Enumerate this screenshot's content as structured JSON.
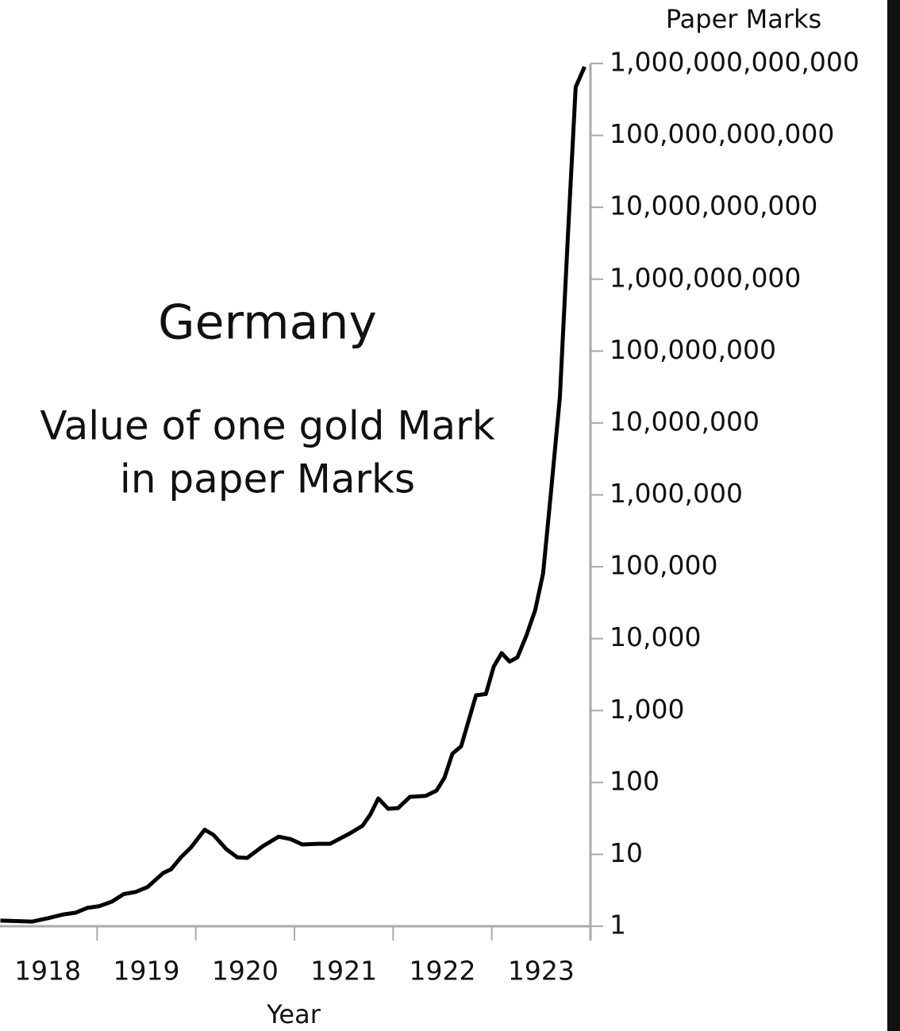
{
  "chart_data": {
    "type": "line",
    "title": "Germany",
    "subtitle": [
      "Value of one gold Mark",
      "in paper Marks"
    ],
    "y_label": "Paper Marks",
    "x_label": "Year",
    "x_categories": [
      "1918",
      "1919",
      "1920",
      "1921",
      "1922",
      "1923"
    ],
    "xlim": [
      1918,
      1924
    ],
    "xticks": [
      1918,
      1919,
      1920,
      1921,
      1922,
      1923,
      1924
    ],
    "log_y": true,
    "ylim": [
      1,
      1000000000000
    ],
    "yticks": [
      1,
      10,
      100,
      {
        "value": 1000,
        "label": "1,000"
      },
      {
        "value": 10000,
        "label": "10,000"
      },
      {
        "value": 100000,
        "label": "100,000"
      },
      {
        "value": 1000000,
        "label": "1,000,000"
      },
      {
        "value": 10000000,
        "label": "10,000,000"
      },
      {
        "value": 100000000,
        "label": "100,000,000"
      },
      {
        "value": 1000000000,
        "label": "1,000,000,000"
      },
      {
        "value": 10000000000,
        "label": "10,000,000,000"
      },
      {
        "value": 100000000000,
        "label": "100,000,000,000"
      },
      {
        "value": 1000000000000,
        "label": "1,000,000,000,000"
      }
    ],
    "color": "#000000",
    "x": [
      1918.02,
      1918.34,
      1918.5,
      1918.66,
      1918.78,
      1918.9,
      1919.02,
      1919.15,
      1919.27,
      1919.39,
      1919.51,
      1919.67,
      1919.75,
      1919.85,
      1919.95,
      1920.09,
      1920.18,
      1920.31,
      1920.42,
      1920.52,
      1920.68,
      1920.84,
      1920.96,
      1921.08,
      1921.24,
      1921.36,
      1921.56,
      1921.69,
      1921.77,
      1921.85,
      1921.95,
      1922.05,
      1922.17,
      1922.33,
      1922.44,
      1922.52,
      1922.6,
      1922.69,
      1922.84,
      1922.94,
      1923.02,
      1923.1,
      1923.18,
      1923.26,
      1923.35,
      1923.44,
      1923.52,
      1923.6,
      1923.69,
      1923.77,
      1923.85,
      1923.94
    ],
    "values": [
      1.2,
      1.16,
      1.29,
      1.46,
      1.54,
      1.8,
      1.9,
      2.2,
      2.8,
      3.0,
      3.5,
      5.5,
      6.2,
      9.1,
      12.4,
      22,
      18.6,
      11.8,
      9.1,
      8.9,
      13,
      17.6,
      16.3,
      13.7,
      14,
      14,
      19.5,
      25,
      36,
      60,
      43,
      44,
      63,
      65,
      77,
      116,
      250,
      320,
      1630,
      1700,
      4100,
      6300,
      4800,
      5500,
      11000,
      25000,
      81000,
      1100000,
      23000000,
      3700000000,
      470000000000,
      900000000000
    ]
  }
}
